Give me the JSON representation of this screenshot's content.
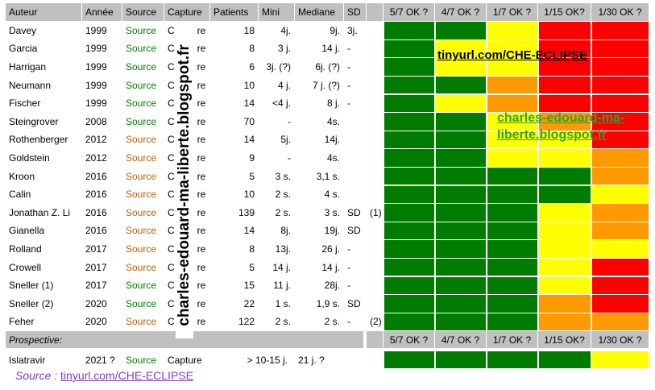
{
  "columns": {
    "headers": [
      "Auteur",
      "Année",
      "Source",
      "Capture",
      "Patients",
      "Mini",
      "Mediane",
      "SD",
      "",
      "5/7 OK ?",
      "4/7 OK ?",
      "1/7 OK ?",
      "1/15 OK?",
      "1/30 OK ?"
    ]
  },
  "colors": {
    "green": "#007d00",
    "yellow": "#ffff00",
    "orange": "#ff9900",
    "red": "#ff0000",
    "header_gray": "#c0c0c0",
    "source_green": "#008000",
    "source_orange": "#c06000"
  },
  "rows": [
    {
      "author": "Davey",
      "year": "1999",
      "source": "Source",
      "source_color": "green",
      "capture": "C",
      "capture_suffix": "re",
      "patients": "18",
      "mini": "4j.",
      "mediane": "9j.",
      "sd": "3j.",
      "note": "",
      "ratings": [
        "green",
        "green",
        "yellow",
        "red",
        "red"
      ]
    },
    {
      "author": "Garcia",
      "year": "1999",
      "source": "Source",
      "source_color": "green",
      "capture": "C",
      "capture_suffix": "re",
      "patients": "8",
      "mini": "3 j.",
      "mediane": "14 j.",
      "sd": "-",
      "note": "",
      "ratings": [
        "green",
        "yellow",
        "yellow",
        "red",
        "red"
      ]
    },
    {
      "author": "Harrigan",
      "year": "1999",
      "source": "Source",
      "source_color": "green",
      "capture": "C",
      "capture_suffix": "re",
      "patients": "6",
      "mini": "3j. (?)",
      "mediane": "6j. (?)",
      "sd": "-",
      "note": "",
      "ratings": [
        "green",
        "yellow",
        "yellow",
        "red",
        "red"
      ]
    },
    {
      "author": "Neumann",
      "year": "1999",
      "source": "Source",
      "source_color": "green",
      "capture": "C",
      "capture_suffix": "re",
      "patients": "10",
      "mini": "4 j.",
      "mediane": "7 j. (?)",
      "sd": "-",
      "note": "",
      "ratings": [
        "green",
        "green",
        "orange",
        "red",
        "red"
      ]
    },
    {
      "author": "Fischer",
      "year": "1999",
      "source": "Source",
      "source_color": "green",
      "capture": "C",
      "capture_suffix": "re",
      "patients": "14",
      "mini": "<4 j.",
      "mediane": "8 j.",
      "sd": "-",
      "note": "",
      "ratings": [
        "green",
        "yellow",
        "orange",
        "red",
        "red"
      ]
    },
    {
      "author": "Steingrover",
      "year": "2008",
      "source": "Source",
      "source_color": "green",
      "capture": "C",
      "capture_suffix": "re",
      "patients": "70",
      "mini": "-",
      "mediane": "4s.",
      "sd": "",
      "note": "",
      "ratings": [
        "green",
        "green",
        "yellow",
        "orange",
        "red"
      ]
    },
    {
      "author": "Rothenberger",
      "year": "2012",
      "source": "Source",
      "source_color": "orange",
      "capture": "C",
      "capture_suffix": "re",
      "patients": "14",
      "mini": "5j.",
      "mediane": "14j.",
      "sd": "",
      "note": "",
      "ratings": [
        "green",
        "green",
        "yellow",
        "yellow",
        "red"
      ]
    },
    {
      "author": "Goldstein",
      "year": "2012",
      "source": "Source",
      "source_color": "orange",
      "capture": "C",
      "capture_suffix": "re",
      "patients": "9",
      "mini": "-",
      "mediane": "4s.",
      "sd": "",
      "note": "",
      "ratings": [
        "green",
        "green",
        "yellow",
        "yellow",
        "orange"
      ]
    },
    {
      "author": "Kroon",
      "year": "2016",
      "source": "Source",
      "source_color": "orange",
      "capture": "C",
      "capture_suffix": "re",
      "patients": "5",
      "mini": "3 s.",
      "mediane": "3,1 s.",
      "sd": "",
      "note": "",
      "ratings": [
        "green",
        "green",
        "green",
        "green",
        "orange"
      ]
    },
    {
      "author": "Calin",
      "year": "2016",
      "source": "Source",
      "source_color": "orange",
      "capture": "C",
      "capture_suffix": "re",
      "patients": "10",
      "mini": "2 s.",
      "mediane": "4 s.",
      "sd": "",
      "note": "",
      "ratings": [
        "green",
        "green",
        "green",
        "green",
        "yellow"
      ]
    },
    {
      "author": "Jonathan Z. Li",
      "year": "2016",
      "source": "Source",
      "source_color": "orange",
      "capture": "C",
      "capture_suffix": "re",
      "patients": "139",
      "mini": "2 s.",
      "mediane": "3 s.",
      "sd": "SD",
      "note": "(1)",
      "ratings": [
        "green",
        "green",
        "green",
        "yellow",
        "orange"
      ]
    },
    {
      "author": "Gianella",
      "year": "2016",
      "source": "Source",
      "source_color": "orange",
      "capture": "C",
      "capture_suffix": "re",
      "patients": "14",
      "mini": "8j.",
      "mediane": "19j.",
      "sd": "SD",
      "note": "",
      "ratings": [
        "green",
        "green",
        "green",
        "yellow",
        "orange"
      ]
    },
    {
      "author": "Rolland",
      "year": "2017",
      "source": "Source",
      "source_color": "orange",
      "capture": "C",
      "capture_suffix": "re",
      "patients": "8",
      "mini": "13j.",
      "mediane": "26 j.",
      "sd": "-",
      "note": "",
      "ratings": [
        "green",
        "green",
        "green",
        "yellow",
        "yellow"
      ]
    },
    {
      "author": "Crowell",
      "year": "2017",
      "source": "Source",
      "source_color": "orange",
      "capture": "C",
      "capture_suffix": "re",
      "patients": "5",
      "mini": "14 j.",
      "mediane": "14 j.",
      "sd": "-",
      "note": "",
      "ratings": [
        "green",
        "green",
        "green",
        "yellow",
        "red"
      ]
    },
    {
      "author": "Sneller (1)",
      "year": "2017",
      "source": "Source",
      "source_color": "green",
      "capture": "C",
      "capture_suffix": "re",
      "patients": "15",
      "mini": "11 j.",
      "mediane": "28j.",
      "sd": "-",
      "note": "",
      "ratings": [
        "green",
        "green",
        "green",
        "yellow",
        "red"
      ]
    },
    {
      "author": "Sneller (2)",
      "year": "2020",
      "source": "Source",
      "source_color": "green",
      "capture": "C",
      "capture_suffix": "re",
      "patients": "22",
      "mini": "1 s.",
      "mediane": "1,9 s.",
      "sd": "SD",
      "note": "",
      "ratings": [
        "green",
        "green",
        "green",
        "orange",
        "red"
      ]
    },
    {
      "author": "Feher",
      "year": "2020",
      "source": "Source",
      "source_color": "orange",
      "capture": "C",
      "capture_suffix": "re",
      "patients": "122",
      "mini": "2 s.",
      "mediane": "2 s.",
      "sd": "-",
      "note": "(2)",
      "ratings": [
        "green",
        "green",
        "green",
        "orange",
        "orange"
      ]
    }
  ],
  "prospective": {
    "label": "Prospective:",
    "headers": [
      "5/7 OK ?",
      "4/7 OK ?",
      "1/7 OK ?",
      "1/15 OK?",
      "1/30 OK ?"
    ]
  },
  "final_row": {
    "author": "Islatravir",
    "year": "2021 ?",
    "source": "Source",
    "source_color": "green",
    "capture": "Capture",
    "patients_mini": "> 10-15 j.",
    "mediane": "21 j. ?",
    "ratings": [
      "green",
      "green",
      "green",
      "green",
      "yellow"
    ]
  },
  "watermarks": {
    "vertical": "charles-edouard-ma-liberte.blogspot.fr",
    "tinyurl": "tinyurl.com/CHE-ECLIPSE",
    "blog": "charles-edouard-ma-liberte.blogspot.fr"
  },
  "footer": {
    "label": "Source : ",
    "link": "tinyurl.com/CHE-ECLIPSE"
  }
}
